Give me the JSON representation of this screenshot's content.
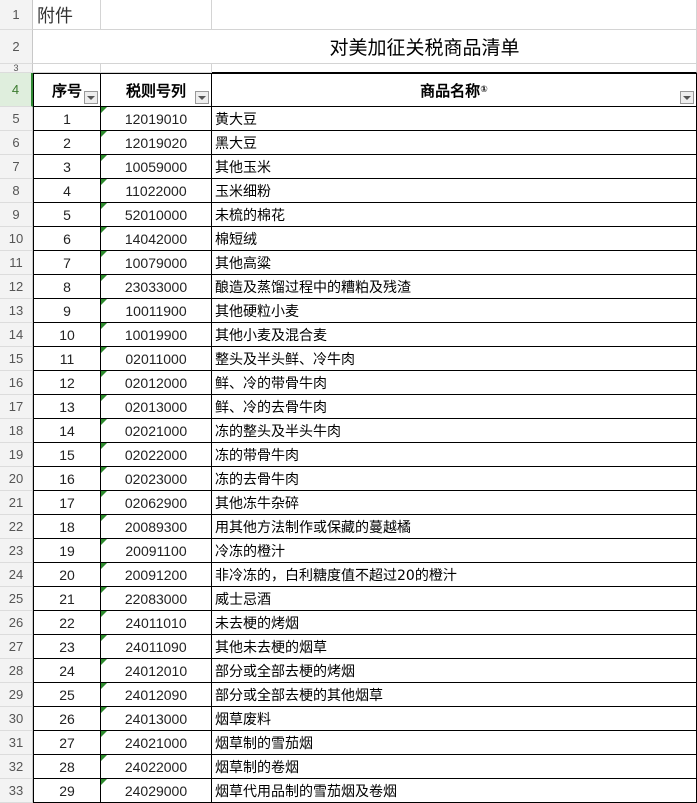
{
  "sheet": {
    "attachment_label": "附件",
    "title": "对美加征关税商品清单",
    "headers": {
      "seq": "序号",
      "tariff": "税则号列",
      "name": "商品名称",
      "footnote": "①"
    },
    "row_numbers": [
      "1",
      "2",
      "3",
      "4"
    ],
    "rows": [
      {
        "r": "5",
        "seq": "1",
        "code": "12019010",
        "name": "黄大豆"
      },
      {
        "r": "6",
        "seq": "2",
        "code": "12019020",
        "name": "黑大豆"
      },
      {
        "r": "7",
        "seq": "3",
        "code": "10059000",
        "name": "其他玉米"
      },
      {
        "r": "8",
        "seq": "4",
        "code": "11022000",
        "name": "玉米细粉"
      },
      {
        "r": "9",
        "seq": "5",
        "code": "52010000",
        "name": "未梳的棉花"
      },
      {
        "r": "10",
        "seq": "6",
        "code": "14042000",
        "name": "棉短绒"
      },
      {
        "r": "11",
        "seq": "7",
        "code": "10079000",
        "name": "其他高粱"
      },
      {
        "r": "12",
        "seq": "8",
        "code": "23033000",
        "name": "酿造及蒸馏过程中的糟粕及残渣"
      },
      {
        "r": "13",
        "seq": "9",
        "code": "10011900",
        "name": "其他硬粒小麦"
      },
      {
        "r": "14",
        "seq": "10",
        "code": "10019900",
        "name": "其他小麦及混合麦"
      },
      {
        "r": "15",
        "seq": "11",
        "code": "02011000",
        "name": "整头及半头鲜、冷牛肉"
      },
      {
        "r": "16",
        "seq": "12",
        "code": "02012000",
        "name": "鲜、冷的带骨牛肉"
      },
      {
        "r": "17",
        "seq": "13",
        "code": "02013000",
        "name": "鲜、冷的去骨牛肉"
      },
      {
        "r": "18",
        "seq": "14",
        "code": "02021000",
        "name": "冻的整头及半头牛肉"
      },
      {
        "r": "19",
        "seq": "15",
        "code": "02022000",
        "name": "冻的带骨牛肉"
      },
      {
        "r": "20",
        "seq": "16",
        "code": "02023000",
        "name": "冻的去骨牛肉"
      },
      {
        "r": "21",
        "seq": "17",
        "code": "02062900",
        "name": "其他冻牛杂碎"
      },
      {
        "r": "22",
        "seq": "18",
        "code": "20089300",
        "name": "用其他方法制作或保藏的蔓越橘"
      },
      {
        "r": "23",
        "seq": "19",
        "code": "20091100",
        "name": "冷冻的橙汁"
      },
      {
        "r": "24",
        "seq": "20",
        "code": "20091200",
        "name": "非冷冻的，白利糖度值不超过20的橙汁"
      },
      {
        "r": "25",
        "seq": "21",
        "code": "22083000",
        "name": "威士忌酒"
      },
      {
        "r": "26",
        "seq": "22",
        "code": "24011010",
        "name": "未去梗的烤烟"
      },
      {
        "r": "27",
        "seq": "23",
        "code": "24011090",
        "name": "其他未去梗的烟草"
      },
      {
        "r": "28",
        "seq": "24",
        "code": "24012010",
        "name": "部分或全部去梗的烤烟"
      },
      {
        "r": "29",
        "seq": "25",
        "code": "24012090",
        "name": "部分或全部去梗的其他烟草"
      },
      {
        "r": "30",
        "seq": "26",
        "code": "24013000",
        "name": "烟草废料"
      },
      {
        "r": "31",
        "seq": "27",
        "code": "24021000",
        "name": "烟草制的雪茄烟"
      },
      {
        "r": "32",
        "seq": "28",
        "code": "24022000",
        "name": "烟草制的卷烟"
      },
      {
        "r": "33",
        "seq": "29",
        "code": "24029000",
        "name": "烟草代用品制的雪茄烟及卷烟"
      }
    ]
  }
}
